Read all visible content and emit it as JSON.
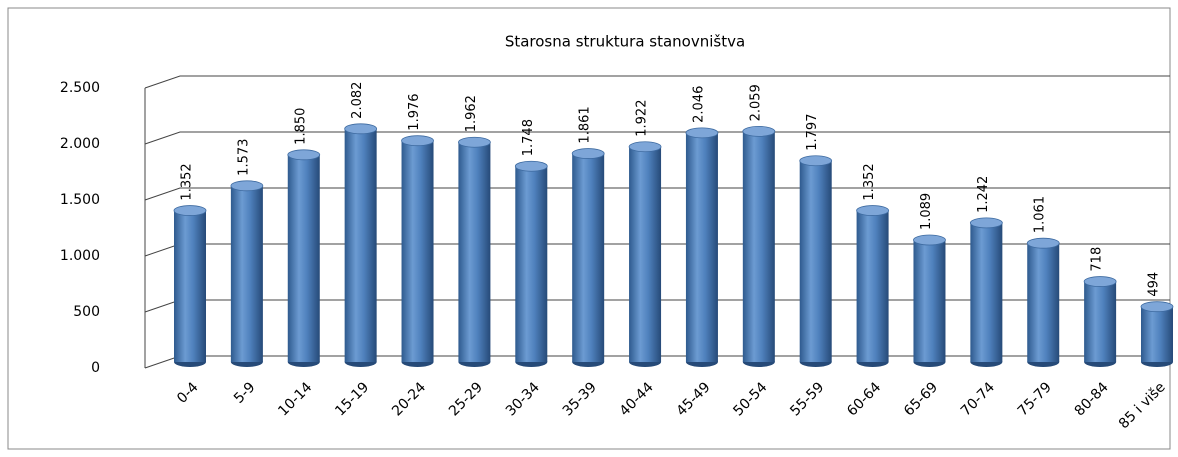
{
  "chart_data": {
    "type": "bar",
    "title": "Starosna struktura stanovništva",
    "categories": [
      "0-4",
      "5-9",
      "10-14",
      "15-19",
      "20-24",
      "25-29",
      "30-34",
      "35-39",
      "40-44",
      "45-49",
      "50-54",
      "55-59",
      "60-64",
      "65-69",
      "70-74",
      "75-79",
      "80-84",
      "85 i više"
    ],
    "values": [
      1352,
      1573,
      1850,
      2082,
      1976,
      1962,
      1748,
      1861,
      1922,
      2046,
      2059,
      1797,
      1352,
      1089,
      1242,
      1061,
      718,
      494
    ],
    "value_labels": [
      "1.352",
      "1.573",
      "1.850",
      "2.082",
      "1.976",
      "1.962",
      "1.748",
      "1.861",
      "1.922",
      "2.046",
      "2.059",
      "1.797",
      "1.352",
      "1.089",
      "1.242",
      "1.061",
      "718",
      "494"
    ],
    "color": "#4f81bd",
    "ylim": [
      0,
      2500
    ],
    "yticks": [
      0,
      500,
      {
        "value": 1000,
        "label": "1.000"
      },
      {
        "value": 1500,
        "label": "1.500"
      },
      {
        "value": 2000,
        "label": "2.000"
      },
      {
        "value": 2500,
        "label": "2.500"
      }
    ],
    "grid": true
  }
}
